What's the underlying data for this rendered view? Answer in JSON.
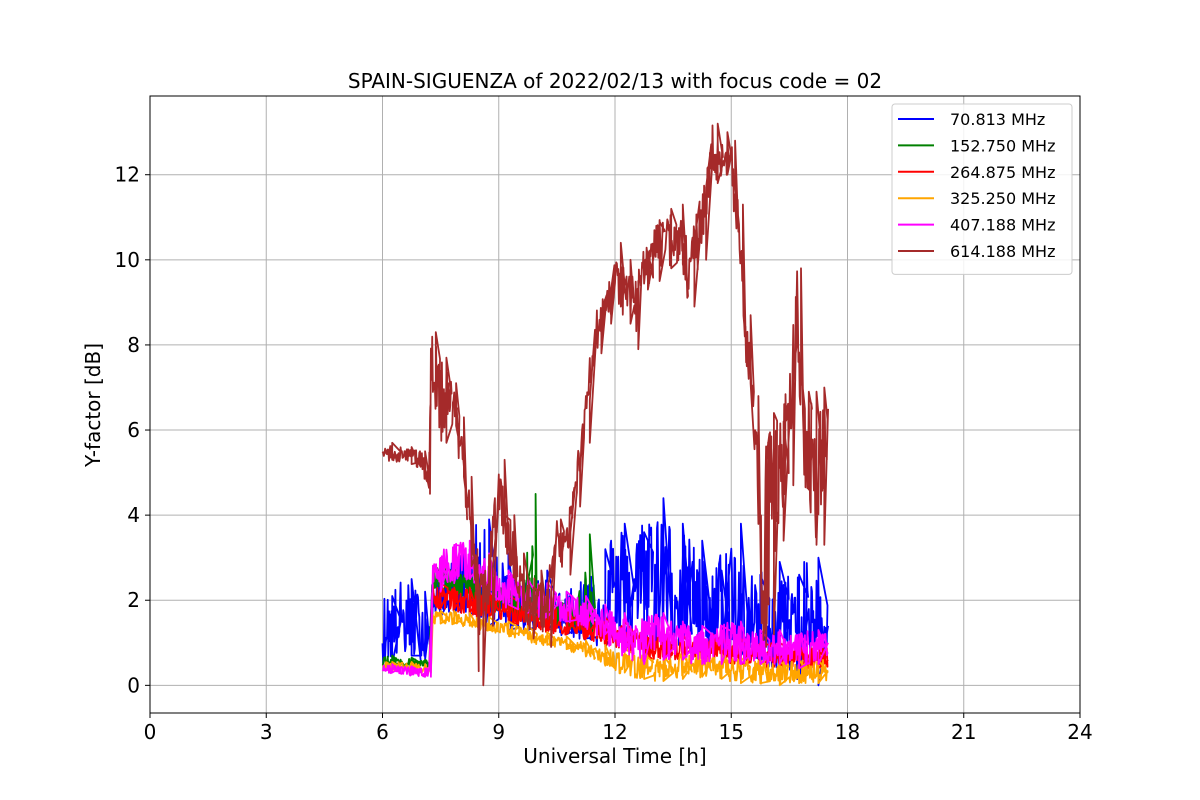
{
  "chart_data": {
    "type": "line",
    "title": "SPAIN-SIGUENZA of 2022/02/13 with focus code = 02",
    "xlabel": "Universal Time [h]",
    "ylabel": "Y-factor [dB]",
    "xlim": [
      0,
      24
    ],
    "ylim": [
      -0.65,
      13.85
    ],
    "xticks": [
      0,
      3,
      6,
      9,
      12,
      15,
      18,
      21,
      24
    ],
    "yticks": [
      0,
      2,
      4,
      6,
      8,
      10,
      12
    ],
    "grid": true,
    "legend_position": "upper right",
    "series": [
      {
        "name": "  70.813 MHz",
        "color": "#0000ff",
        "x": [
          6.0,
          6.5,
          7.0,
          7.2,
          7.3,
          7.7,
          8.0,
          8.5,
          9.0,
          9.5,
          10.0,
          10.5,
          11.0,
          11.5,
          12.0,
          12.5,
          13.0,
          13.5,
          14.0,
          14.5,
          15.0,
          15.5,
          16.0,
          16.5,
          17.0,
          17.5
        ],
        "y": [
          1.2,
          1.5,
          1.3,
          1.1,
          2.0,
          2.1,
          2.3,
          2.2,
          1.9,
          1.7,
          1.8,
          1.6,
          1.7,
          1.8,
          1.9,
          2.2,
          2.6,
          2.2,
          2.0,
          1.6,
          1.5,
          1.3,
          1.4,
          1.5,
          1.3,
          1.4
        ],
        "high": [
          2.1,
          2.5,
          2.2,
          1.6,
          2.6,
          2.8,
          3.2,
          3.9,
          3.1,
          2.4,
          2.7,
          2.2,
          2.3,
          3.2,
          3.8,
          3.6,
          4.4,
          3.8,
          3.4,
          2.7,
          3.8,
          2.6,
          2.9,
          2.6,
          3.0,
          2.2
        ],
        "low": [
          0.5,
          0.7,
          0.6,
          0.7,
          1.6,
          1.7,
          1.7,
          1.4,
          1.3,
          1.3,
          1.3,
          1.2,
          1.1,
          0.9,
          1.0,
          0.9,
          0.8,
          0.9,
          0.8,
          0.7,
          0.7,
          0.5,
          0.4,
          0.2,
          0.0,
          0.5
        ]
      },
      {
        "name": "152.750 MHz",
        "color": "#008000",
        "x": [
          6.0,
          6.5,
          7.0,
          7.2,
          7.3,
          7.7,
          8.0,
          8.5,
          9.0,
          9.5,
          9.9,
          10.0,
          10.5,
          11.0,
          11.2,
          11.5
        ],
        "y": [
          0.6,
          0.55,
          0.5,
          0.5,
          2.4,
          2.5,
          2.4,
          2.2,
          2.0,
          1.9,
          1.8,
          1.8,
          1.7,
          1.6,
          1.6,
          1.5
        ],
        "high": [
          0.7,
          0.65,
          0.6,
          0.6,
          2.8,
          2.8,
          2.7,
          2.5,
          2.3,
          2.2,
          4.5,
          2.1,
          2.0,
          1.9,
          3.55,
          1.8
        ],
        "low": [
          0.45,
          0.45,
          0.4,
          0.4,
          2.1,
          2.2,
          2.1,
          1.9,
          1.7,
          1.6,
          1.5,
          1.5,
          1.4,
          1.3,
          1.3,
          1.2
        ]
      },
      {
        "name": "264.875 MHz",
        "color": "#ff0000",
        "x": [
          7.3,
          7.7,
          8.0,
          8.5,
          9.0,
          9.5,
          10.0,
          10.5,
          11.0,
          11.5,
          12.0,
          12.5,
          13.0,
          13.5,
          14.0,
          14.5,
          15.0,
          15.5,
          16.0,
          16.5,
          17.0,
          17.5
        ],
        "y": [
          2.1,
          2.05,
          2.0,
          1.9,
          1.8,
          1.7,
          1.6,
          1.5,
          1.4,
          1.3,
          1.2,
          1.0,
          0.9,
          0.9,
          0.85,
          0.9,
          0.8,
          0.75,
          0.7,
          0.65,
          0.6,
          0.6
        ],
        "high": [
          2.4,
          2.3,
          2.3,
          2.2,
          2.1,
          2.0,
          1.9,
          1.8,
          1.7,
          1.6,
          1.5,
          1.3,
          1.2,
          1.2,
          1.1,
          1.2,
          1.1,
          1.0,
          1.0,
          0.9,
          0.9,
          0.9
        ],
        "low": [
          1.8,
          1.8,
          1.7,
          1.6,
          1.5,
          1.4,
          1.3,
          1.2,
          1.1,
          1.0,
          0.9,
          0.7,
          0.6,
          0.6,
          0.6,
          0.6,
          0.5,
          0.5,
          0.4,
          0.4,
          0.4,
          0.4
        ]
      },
      {
        "name": "325.250 MHz",
        "color": "#ffa500",
        "x": [
          6.0,
          6.5,
          7.0,
          7.2,
          7.3,
          7.7,
          8.0,
          8.5,
          9.0,
          9.5,
          10.0,
          10.5,
          11.0,
          11.5,
          12.0,
          12.5,
          13.0,
          13.5,
          14.0,
          14.5,
          15.0,
          15.5,
          16.0,
          16.5,
          17.0,
          17.5
        ],
        "y": [
          0.45,
          0.45,
          0.4,
          0.4,
          1.6,
          1.6,
          1.55,
          1.45,
          1.35,
          1.25,
          1.1,
          1.0,
          0.9,
          0.8,
          0.6,
          0.45,
          0.4,
          0.45,
          0.5,
          0.45,
          0.35,
          0.3,
          0.25,
          0.3,
          0.3,
          0.35
        ],
        "high": [
          0.55,
          0.55,
          0.5,
          0.5,
          1.75,
          1.75,
          1.7,
          1.6,
          1.5,
          1.4,
          1.25,
          1.15,
          1.05,
          0.95,
          0.85,
          0.75,
          0.7,
          0.75,
          0.8,
          0.75,
          0.65,
          0.6,
          0.55,
          0.6,
          0.6,
          0.65
        ],
        "low": [
          0.35,
          0.35,
          0.3,
          0.3,
          1.45,
          1.45,
          1.4,
          1.3,
          1.2,
          1.1,
          0.95,
          0.85,
          0.75,
          0.6,
          0.3,
          0.15,
          0.1,
          0.15,
          0.2,
          0.15,
          0.05,
          0.05,
          0.0,
          0.05,
          0.05,
          0.1
        ]
      },
      {
        "name": "407.188 MHz",
        "color": "#ff00ff",
        "x": [
          6.0,
          6.5,
          7.0,
          7.2,
          7.3,
          7.7,
          8.0,
          8.5,
          9.0,
          9.5,
          10.0,
          10.5,
          11.0,
          11.5,
          12.0,
          12.5,
          13.0,
          13.5,
          14.0,
          14.5,
          15.0,
          15.5,
          16.0,
          16.5,
          17.0,
          17.5
        ],
        "y": [
          0.4,
          0.35,
          0.3,
          0.3,
          2.6,
          2.9,
          3.0,
          2.7,
          2.3,
          2.1,
          2.0,
          1.9,
          1.8,
          1.6,
          1.3,
          1.1,
          1.2,
          1.1,
          1.0,
          1.0,
          1.0,
          0.9,
          0.85,
          0.8,
          0.9,
          1.0
        ],
        "high": [
          0.5,
          0.45,
          0.4,
          0.4,
          3.0,
          3.3,
          3.4,
          3.1,
          2.7,
          2.5,
          2.4,
          2.2,
          2.1,
          1.9,
          1.7,
          1.5,
          1.7,
          1.5,
          1.4,
          1.4,
          1.5,
          1.3,
          1.3,
          1.2,
          1.3,
          1.2
        ],
        "low": [
          0.3,
          0.25,
          0.2,
          0.2,
          2.2,
          2.4,
          2.5,
          2.2,
          1.9,
          1.7,
          1.6,
          1.5,
          1.4,
          1.2,
          0.8,
          0.5,
          0.6,
          0.6,
          0.5,
          0.5,
          0.5,
          0.5,
          0.5,
          0.4,
          0.5,
          0.7
        ]
      },
      {
        "name": "614.188 MHz",
        "color": "#a52a2a",
        "x": [
          6.0,
          6.5,
          7.0,
          7.2,
          7.25,
          7.5,
          7.8,
          8.0,
          8.2,
          8.4,
          8.5,
          8.7,
          9.0,
          9.3,
          9.5,
          9.8,
          10.0,
          10.2,
          10.5,
          10.7,
          11.0,
          11.2,
          11.5,
          11.8,
          12.0,
          12.3,
          12.5,
          12.7,
          13.0,
          13.3,
          13.6,
          13.9,
          14.2,
          14.5,
          14.8,
          15.0,
          15.2,
          15.4,
          15.6,
          15.8,
          16.0,
          16.2,
          16.5,
          16.7,
          16.9,
          17.1,
          17.3,
          17.5
        ],
        "y": [
          5.5,
          5.4,
          5.3,
          5.0,
          7.6,
          6.0,
          6.9,
          6.0,
          4.2,
          2.8,
          2.1,
          2.3,
          4.8,
          3.4,
          2.6,
          1.7,
          2.1,
          1.6,
          3.5,
          3.2,
          4.8,
          6.3,
          8.2,
          8.9,
          9.5,
          9.4,
          8.7,
          9.8,
          10.2,
          10.5,
          10.9,
          9.6,
          10.6,
          12.3,
          12.6,
          12.2,
          10.7,
          7.8,
          6.5,
          2.7,
          5.6,
          5.0,
          5.8,
          8.6,
          5.4,
          5.6,
          4.2,
          6.5
        ],
        "high": [
          5.7,
          5.6,
          5.5,
          5.2,
          8.3,
          7.7,
          7.1,
          6.3,
          4.9,
          3.2,
          2.6,
          2.8,
          5.3,
          4.0,
          3.1,
          2.3,
          2.7,
          2.2,
          3.9,
          3.6,
          5.2,
          6.7,
          8.8,
          9.3,
          10.4,
          10.0,
          9.5,
          10.2,
          10.9,
          11.2,
          11.3,
          10.4,
          11.7,
          13.2,
          13.0,
          12.8,
          11.3,
          8.7,
          6.8,
          5.3,
          6.4,
          6.2,
          7.4,
          9.8,
          6.9,
          6.9,
          7.0,
          7.0
        ],
        "low": [
          5.3,
          5.2,
          5.1,
          4.5,
          6.9,
          5.7,
          6.1,
          4.9,
          2.8,
          1.9,
          0.0,
          1.4,
          4.0,
          2.6,
          2.0,
          1.1,
          1.5,
          0.9,
          2.9,
          2.6,
          4.2,
          5.7,
          7.8,
          8.5,
          8.9,
          8.5,
          7.9,
          9.3,
          9.5,
          9.8,
          9.9,
          8.9,
          10.0,
          11.8,
          12.0,
          11.7,
          9.7,
          7.1,
          5.5,
          0.9,
          1.2,
          3.4,
          4.7,
          7.4,
          4.6,
          3.3,
          3.3,
          5.2
        ]
      }
    ]
  }
}
